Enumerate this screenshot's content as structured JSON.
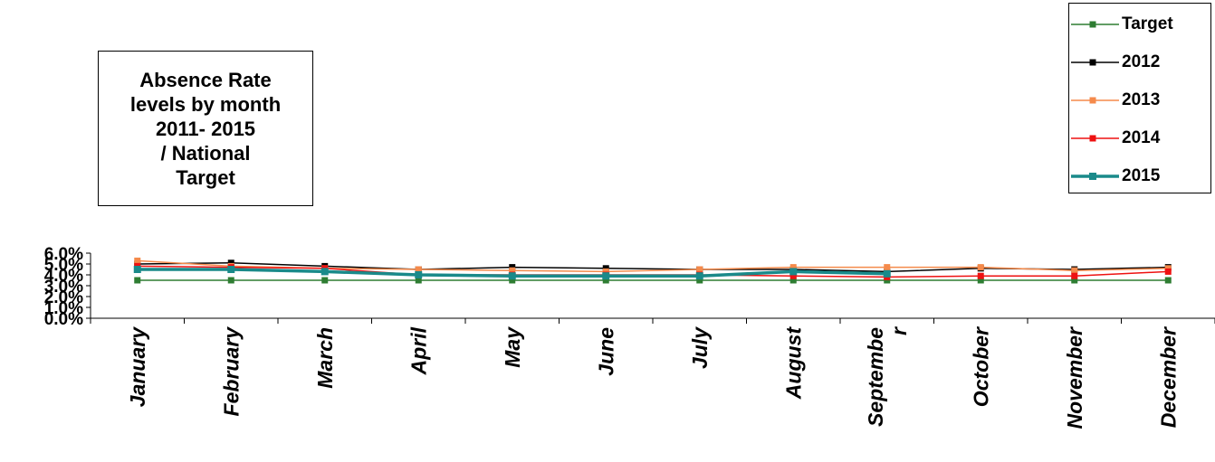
{
  "chart_data": {
    "type": "line",
    "title": "Absence Rate\nlevels by month\n2011- 2015\n/ National\nTarget",
    "xlabel": "",
    "ylabel": "",
    "categories": [
      "January",
      "February",
      "March",
      "April",
      "May",
      "June",
      "July",
      "August",
      "Septembe\nr",
      "October",
      "November",
      "December"
    ],
    "yticks": [
      "0.0%",
      "1.0%",
      "2.0%",
      "3.0%",
      "4.0%",
      "5.0%",
      "6.0%"
    ],
    "ylim": [
      0,
      6
    ],
    "legend_position": "top-right",
    "grid": false,
    "series": [
      {
        "name": "Target",
        "color": "#2e7d32",
        "width": 1.5,
        "values": [
          3.5,
          3.5,
          3.5,
          3.5,
          3.5,
          3.5,
          3.5,
          3.5,
          3.5,
          3.5,
          3.5,
          3.5
        ]
      },
      {
        "name": "2012",
        "color": "#000000",
        "width": 1.5,
        "values": [
          5.0,
          5.1,
          4.8,
          4.5,
          4.7,
          4.6,
          4.5,
          4.5,
          4.3,
          4.6,
          4.5,
          4.7
        ]
      },
      {
        "name": "2013",
        "color": "#f58a4b",
        "width": 1.5,
        "values": [
          5.3,
          4.8,
          4.6,
          4.5,
          4.4,
          4.3,
          4.5,
          4.7,
          4.7,
          4.7,
          4.4,
          4.6
        ]
      },
      {
        "name": "2014",
        "color": "#ee1111",
        "width": 1.5,
        "values": [
          4.8,
          4.7,
          4.6,
          4.0,
          4.0,
          4.0,
          4.0,
          3.9,
          3.8,
          3.9,
          3.9,
          4.3
        ]
      },
      {
        "name": "2015",
        "color": "#1a8a8a",
        "width": 3.5,
        "values": [
          4.5,
          4.5,
          4.3,
          4.0,
          3.9,
          3.9,
          3.9,
          4.3,
          4.1,
          null,
          null,
          null
        ]
      }
    ]
  }
}
